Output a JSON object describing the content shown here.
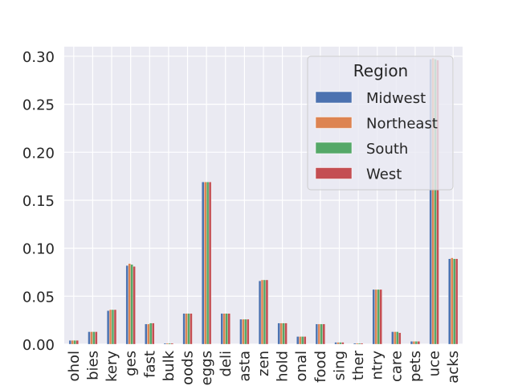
{
  "chart_data": {
    "type": "bar",
    "categories": [
      "alcohol",
      "babies",
      "bakery",
      "beverages",
      "breakfast",
      "bulk",
      "canned goods",
      "dairy eggs",
      "deli",
      "dry goods pasta",
      "frozen",
      "household",
      "international",
      "meat seafood",
      "missing",
      "other",
      "pantry",
      "personal care",
      "pets",
      "produce",
      "snacks"
    ],
    "series": [
      {
        "name": "Midwest",
        "values": [
          0.004,
          0.013,
          0.035,
          0.082,
          0.021,
          0.001,
          0.032,
          0.169,
          0.032,
          0.026,
          0.066,
          0.022,
          0.008,
          0.021,
          0.002,
          0.001,
          0.057,
          0.013,
          0.003,
          0.297,
          0.089
        ]
      },
      {
        "name": "Northeast",
        "values": [
          0.004,
          0.013,
          0.036,
          0.084,
          0.021,
          0.001,
          0.032,
          0.169,
          0.032,
          0.026,
          0.067,
          0.022,
          0.008,
          0.021,
          0.002,
          0.001,
          0.057,
          0.013,
          0.003,
          0.298,
          0.09
        ]
      },
      {
        "name": "South",
        "values": [
          0.004,
          0.013,
          0.036,
          0.083,
          0.022,
          0.001,
          0.032,
          0.169,
          0.032,
          0.026,
          0.067,
          0.022,
          0.008,
          0.021,
          0.002,
          0.001,
          0.057,
          0.013,
          0.003,
          0.297,
          0.089
        ]
      },
      {
        "name": "West",
        "values": [
          0.004,
          0.013,
          0.036,
          0.081,
          0.022,
          0.001,
          0.032,
          0.169,
          0.032,
          0.026,
          0.067,
          0.022,
          0.008,
          0.021,
          0.002,
          0.001,
          0.057,
          0.012,
          0.003,
          0.296,
          0.089
        ]
      }
    ],
    "colors": [
      "#4c72b0",
      "#dd8452",
      "#55a868",
      "#c44e52"
    ],
    "ylim": [
      0,
      0.31
    ],
    "yticks": [
      0.0,
      0.05,
      0.1,
      0.15,
      0.2,
      0.25,
      0.3
    ],
    "ytick_labels": [
      "0.00",
      "0.05",
      "0.10",
      "0.15",
      "0.20",
      "0.25",
      "0.30"
    ],
    "xtick_labels_visible": [
      "ohol",
      "bies",
      "kery",
      "ges",
      "fast",
      "bulk",
      "oods",
      "eggs",
      "deli",
      "asta",
      "zen",
      "hold",
      "onal",
      "food",
      "sing",
      "ther",
      "ntry",
      "care",
      "pets",
      "uce",
      "acks"
    ],
    "legend": {
      "title": "Region",
      "placement": "upper right"
    },
    "grid": true,
    "background": "#eaeaf2",
    "title": "",
    "xlabel": "",
    "ylabel": ""
  }
}
